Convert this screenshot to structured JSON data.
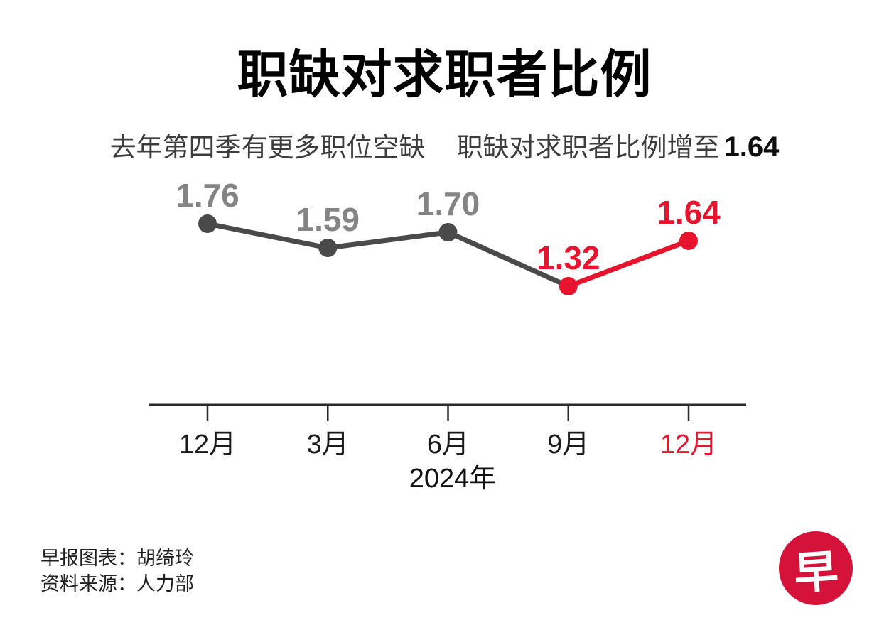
{
  "title": "职缺对求职者比例",
  "subtitle": {
    "part1": "去年第四季有更多职位空缺",
    "part2": "职缺对求职者比例增至",
    "highlight": "1.64"
  },
  "chart_data": {
    "type": "line",
    "title": "职缺对求职者比例",
    "categories": [
      "12月",
      "3月",
      "6月",
      "9月",
      "12月"
    ],
    "values": [
      1.76,
      1.59,
      1.7,
      1.32,
      1.64
    ],
    "xlabel": "2024年",
    "ylabel": "",
    "ylim": [
      1.0,
      2.0
    ],
    "grid": false,
    "legend": "none",
    "axis_color": "#2b2b2b",
    "segment_colors": [
      "#4a4a4a",
      "#4a4a4a",
      "#4a4a4a",
      "#e8132d"
    ],
    "point_colors": [
      "#4a4a4a",
      "#4a4a4a",
      "#4a4a4a",
      "#e8132d",
      "#e8132d"
    ],
    "value_label_colors": [
      "#848484",
      "#848484",
      "#848484",
      "#e8132d",
      "#e8132d"
    ],
    "tick_label_colors": [
      "#1a1a1a",
      "#1a1a1a",
      "#1a1a1a",
      "#1a1a1a",
      "#e8132d"
    ],
    "xlabel_color": "#111111"
  },
  "footer": {
    "credit": "早报图表：胡绮玲",
    "source": "资料来源：人力部"
  },
  "logo": {
    "char": "早",
    "background": "#d4123a"
  },
  "colors": {
    "accent_red": "#e8132d",
    "line_dark": "#4a4a4a",
    "value_gray": "#848484"
  }
}
